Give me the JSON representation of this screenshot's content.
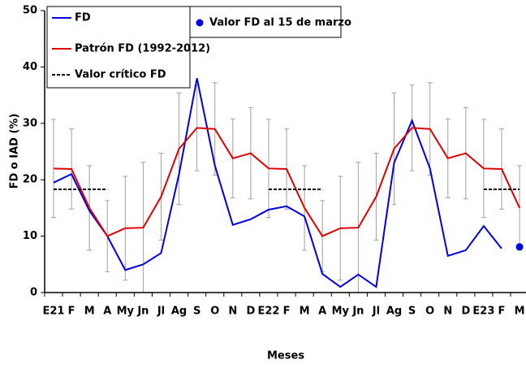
{
  "chart_data": {
    "type": "line",
    "x_label": "Meses",
    "y_label": "FD o IAD (%)",
    "categories": [
      "E21",
      "F",
      "M",
      "A",
      "My",
      "Jn",
      "Jl",
      "Ag",
      "S",
      "O",
      "N",
      "D",
      "E22",
      "F",
      "M",
      "A",
      "My",
      "Jn",
      "Jl",
      "Ag",
      "S",
      "O",
      "N",
      "D",
      "E23",
      "F",
      "M"
    ],
    "ylim": [
      0,
      50
    ],
    "yticks": [
      0,
      10,
      20,
      30,
      40,
      50
    ],
    "series": [
      {
        "name": "FD",
        "color": "#0000e0",
        "style": "solid",
        "values": [
          19.5,
          21,
          14.5,
          10,
          4,
          5,
          7,
          21,
          38,
          22.5,
          12,
          13,
          14.7,
          15.3,
          13.5,
          3.3,
          1,
          3.2,
          1,
          23,
          30.5,
          22,
          6.5,
          7.5,
          11.8,
          7.8,
          null
        ]
      },
      {
        "name": "Patrón FD (1992-2012)",
        "color": "#e00000",
        "style": "solid",
        "values": [
          22,
          21.9,
          15,
          10,
          11.4,
          11.5,
          17,
          25.5,
          29.2,
          29,
          23.8,
          24.7,
          22,
          21.9,
          15,
          10,
          11.4,
          11.5,
          17,
          25.5,
          29.2,
          29,
          23.8,
          24.7,
          22,
          21.9,
          15
        ],
        "errors": [
          8.7,
          7.1,
          7.5,
          6.3,
          9.2,
          11.6,
          7.7,
          9.9,
          7.6,
          8.2,
          7,
          8.1,
          8.7,
          7.1,
          7.5,
          6.3,
          9.2,
          11.6,
          7.7,
          9.9,
          7.6,
          8.2,
          7,
          8.1,
          8.7,
          7.1,
          7.5
        ],
        "error_color": "#a0a0a0"
      },
      {
        "name": "Valor crítico FD",
        "color": "#000000",
        "style": "dashed",
        "values": [
          18.3,
          18.3,
          18.3,
          18.3,
          null,
          null,
          null,
          null,
          null,
          null,
          null,
          null,
          18.3,
          18.3,
          18.3,
          18.3,
          null,
          null,
          null,
          null,
          null,
          null,
          null,
          null,
          18.3,
          18.3,
          18.3
        ]
      },
      {
        "name": "Valor FD al 15 de marzo",
        "color": "#0000e0",
        "style": "point",
        "values": [
          null,
          null,
          null,
          null,
          null,
          null,
          null,
          null,
          null,
          null,
          null,
          null,
          null,
          null,
          null,
          null,
          null,
          null,
          null,
          null,
          null,
          null,
          null,
          null,
          null,
          null,
          8.1
        ]
      }
    ]
  }
}
